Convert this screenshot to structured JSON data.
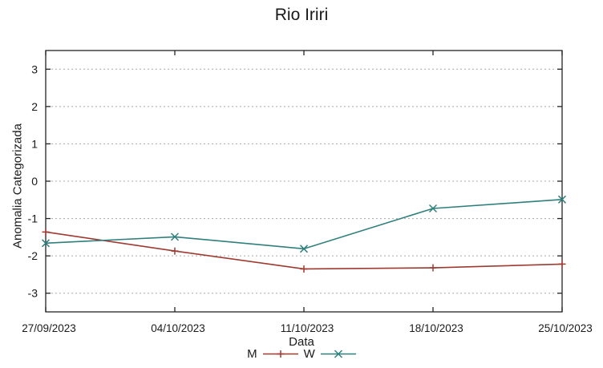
{
  "chart_data": {
    "type": "line",
    "title": "Rio Iriri",
    "xlabel": "Data",
    "ylabel": "Anomalia Categorizada",
    "categories": [
      "27/09/2023",
      "04/10/2023",
      "11/10/2023",
      "18/10/2023",
      "25/10/2023"
    ],
    "yticks": [
      3,
      2,
      1,
      0,
      -1,
      -2,
      -3
    ],
    "ylim": [
      -3.5,
      3.5
    ],
    "grid": "horizontal-dotted",
    "legend_position": "bottom-center",
    "colors": {
      "series_m": "#9e3a30",
      "series_w": "#2f7f7d",
      "gridline": "#a8a8a8",
      "border": "#222222",
      "text": "#1a1a1a"
    },
    "series": [
      {
        "name": "M",
        "color": "#9e3a30",
        "marker": "plus",
        "values": [
          -1.36,
          -1.87,
          -2.35,
          -2.32,
          -2.22
        ]
      },
      {
        "name": "W",
        "color": "#2f7f7d",
        "marker": "cross",
        "values": [
          -1.66,
          -1.49,
          -1.81,
          -0.73,
          -0.49
        ]
      }
    ]
  }
}
